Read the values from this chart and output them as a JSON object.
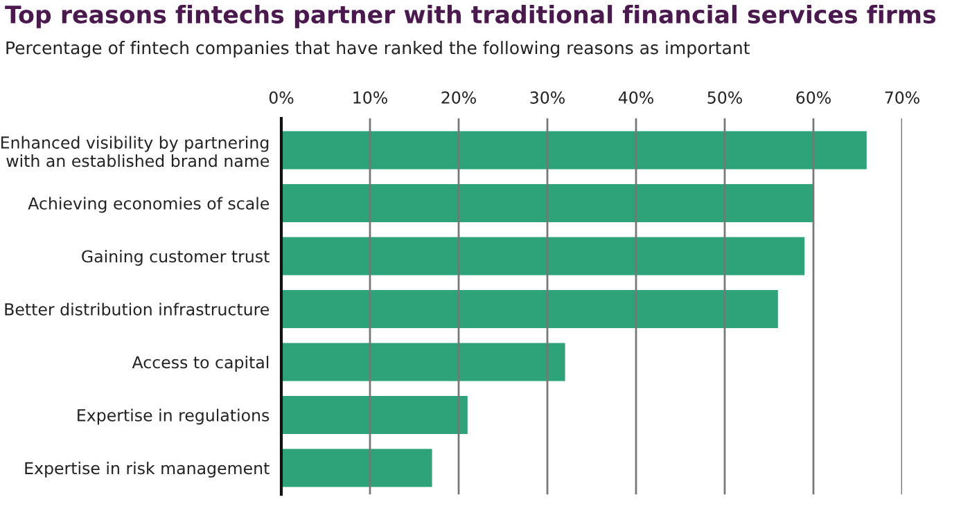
{
  "chart_data": {
    "type": "bar",
    "orientation": "horizontal",
    "title": "Top reasons fintechs partner with traditional financial services firms",
    "subtitle": "Percentage of fintech companies that have ranked the following reasons as important",
    "categories": [
      "Enhanced visibility by partnering\nwith an established brand name",
      "Achieving economies of scale",
      "Gaining customer trust",
      "Better distribution infrastructure",
      "Access to capital",
      "Expertise in regulations",
      "Expertise in risk management"
    ],
    "values": [
      66,
      60,
      59,
      56,
      32,
      21,
      17
    ],
    "color": "#2ea37a",
    "xlim": [
      0,
      70
    ],
    "xticks": [
      {
        "value": 0,
        "label": "0%"
      },
      {
        "value": 10,
        "label": "10%"
      },
      {
        "value": 20,
        "label": "20%"
      },
      {
        "value": 30,
        "label": "30%"
      },
      {
        "value": 40,
        "label": "40%"
      },
      {
        "value": 50,
        "label": "50%"
      },
      {
        "value": 60,
        "label": "60%"
      },
      {
        "value": 70,
        "label": "70%"
      }
    ],
    "grid": "x"
  }
}
